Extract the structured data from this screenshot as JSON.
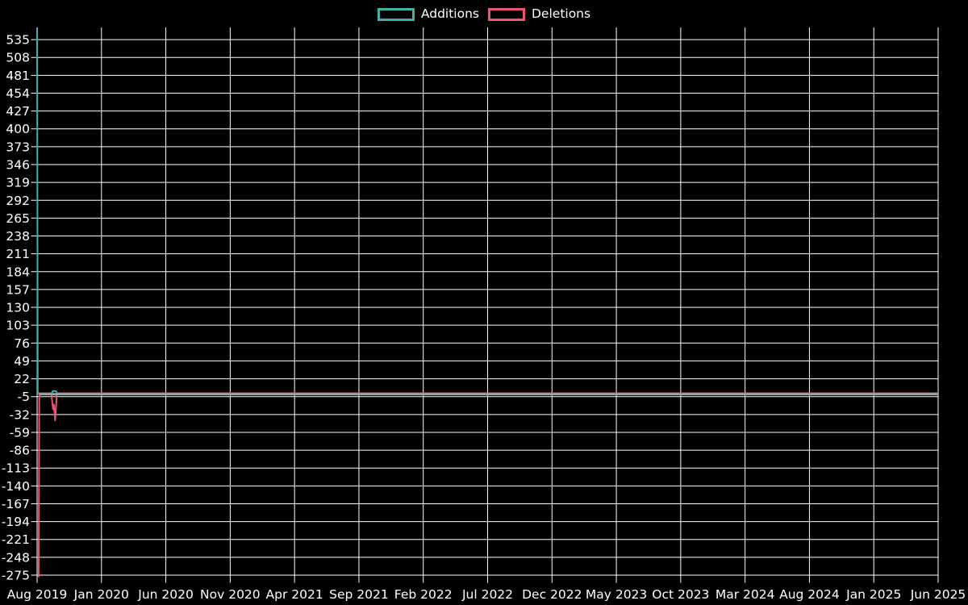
{
  "chart_data": {
    "type": "line",
    "title": "",
    "xlabel": "",
    "ylabel": "",
    "x_unit": "months since Aug 2019 (weekly additions/deletions activity)",
    "x_range_months": [
      0,
      70
    ],
    "y_range": [
      -278,
      553
    ],
    "grid": true,
    "legend_position": "top-center",
    "background_color": "#000000",
    "grid_color": "#ffffff",
    "text_color": "#ffffff",
    "overlap_line_color": "#8da4ae",
    "x_tick_labels": [
      "Aug 2019",
      "Jan 2020",
      "Jun 2020",
      "Nov 2020",
      "Apr 2021",
      "Sep 2021",
      "Feb 2022",
      "Jul 2022",
      "Dec 2022",
      "May 2023",
      "Oct 2023",
      "Mar 2024",
      "Aug 2024",
      "Jan 2025",
      "Jun 2025"
    ],
    "y_tick_labels": [
      535,
      508,
      481,
      454,
      427,
      400,
      373,
      346,
      319,
      292,
      265,
      238,
      211,
      184,
      157,
      130,
      103,
      76,
      49,
      22,
      -5,
      -32,
      -59,
      -86,
      -113,
      -140,
      -167,
      -194,
      -221,
      -248,
      -275
    ],
    "legend": [
      {
        "label": "Additions",
        "color": "#42b0a8"
      },
      {
        "label": "Deletions",
        "color": "#ee5570"
      }
    ],
    "series": [
      {
        "name": "Additions",
        "color": "#42b0a8",
        "points": [
          [
            0,
            553
          ],
          [
            0.05,
            0
          ],
          [
            1.128,
            0
          ],
          [
            1.22,
            3.5
          ],
          [
            1.44,
            3.5
          ],
          [
            1.567,
            0
          ],
          [
            70,
            0
          ]
        ]
      },
      {
        "name": "Deletions",
        "color": "#ee5570",
        "points": [
          [
            0.12,
            -278
          ],
          [
            0.17,
            0
          ],
          [
            1.097,
            0
          ],
          [
            1.241,
            -24
          ],
          [
            1.304,
            -17
          ],
          [
            1.404,
            -41
          ],
          [
            1.536,
            0
          ],
          [
            70,
            0
          ]
        ]
      }
    ]
  }
}
